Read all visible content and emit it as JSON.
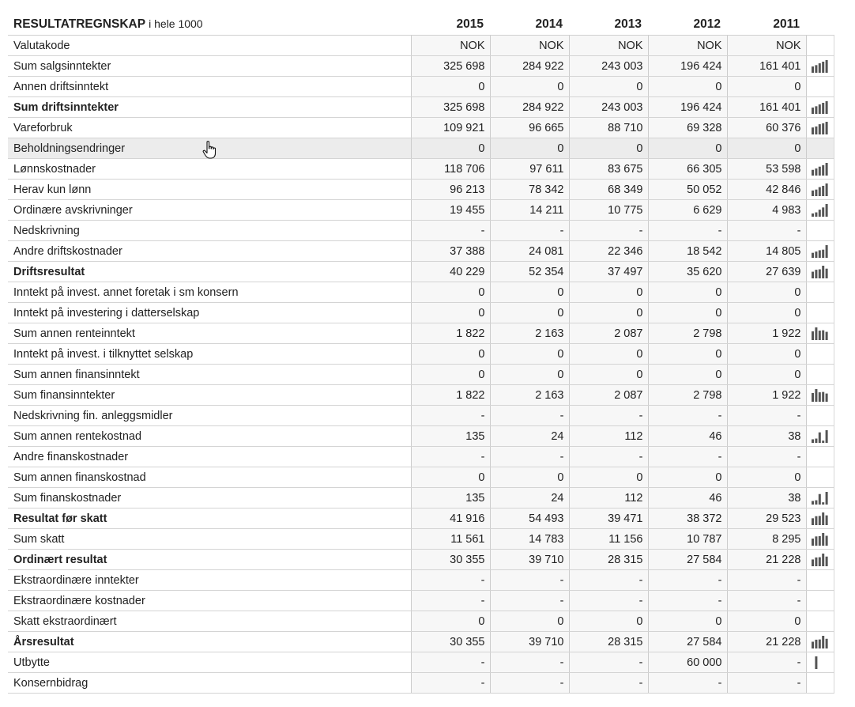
{
  "header": {
    "title": "RESULTATREGNSKAP",
    "scale": "i hele 1000",
    "years": [
      "2015",
      "2014",
      "2013",
      "2012",
      "2011"
    ]
  },
  "rows": [
    {
      "label": "Valutakode",
      "values": [
        "NOK",
        "NOK",
        "NOK",
        "NOK",
        "NOK"
      ],
      "bold": false,
      "spark": false
    },
    {
      "label": "Sum salgsinntekter",
      "values": [
        "325 698",
        "284 922",
        "243 003",
        "196 424",
        "161 401"
      ],
      "bold": false,
      "spark": true
    },
    {
      "label": "Annen driftsinntekt",
      "values": [
        "0",
        "0",
        "0",
        "0",
        "0"
      ],
      "bold": false,
      "spark": false
    },
    {
      "label": "Sum driftsinntekter",
      "values": [
        "325 698",
        "284 922",
        "243 003",
        "196 424",
        "161 401"
      ],
      "bold": true,
      "spark": true
    },
    {
      "label": "Vareforbruk",
      "values": [
        "109 921",
        "96 665",
        "88 710",
        "69 328",
        "60 376"
      ],
      "bold": false,
      "spark": true
    },
    {
      "label": "Beholdningsendringer",
      "values": [
        "0",
        "0",
        "0",
        "0",
        "0"
      ],
      "bold": false,
      "spark": false,
      "hover": true
    },
    {
      "label": "Lønnskostnader",
      "values": [
        "118 706",
        "97 611",
        "83 675",
        "66 305",
        "53 598"
      ],
      "bold": false,
      "spark": true
    },
    {
      "label": "Herav kun lønn",
      "values": [
        "96 213",
        "78 342",
        "68 349",
        "50 052",
        "42 846"
      ],
      "bold": false,
      "spark": true
    },
    {
      "label": "Ordinære avskrivninger",
      "values": [
        "19 455",
        "14 211",
        "10 775",
        "6 629",
        "4 983"
      ],
      "bold": false,
      "spark": true
    },
    {
      "label": "Nedskrivning",
      "values": [
        "-",
        "-",
        "-",
        "-",
        "-"
      ],
      "bold": false,
      "spark": false
    },
    {
      "label": "Andre driftskostnader",
      "values": [
        "37 388",
        "24 081",
        "22 346",
        "18 542",
        "14 805"
      ],
      "bold": false,
      "spark": true
    },
    {
      "label": "Driftsresultat",
      "values": [
        "40 229",
        "52 354",
        "37 497",
        "35 620",
        "27 639"
      ],
      "bold": true,
      "spark": true
    },
    {
      "label": "Inntekt på invest. annet foretak i sm konsern",
      "values": [
        "0",
        "0",
        "0",
        "0",
        "0"
      ],
      "bold": false,
      "spark": false
    },
    {
      "label": "Inntekt på investering i datterselskap",
      "values": [
        "0",
        "0",
        "0",
        "0",
        "0"
      ],
      "bold": false,
      "spark": false
    },
    {
      "label": "Sum annen renteinntekt",
      "values": [
        "1 822",
        "2 163",
        "2 087",
        "2 798",
        "1 922"
      ],
      "bold": false,
      "spark": true
    },
    {
      "label": "Inntekt på invest. i tilknyttet selskap",
      "values": [
        "0",
        "0",
        "0",
        "0",
        "0"
      ],
      "bold": false,
      "spark": false
    },
    {
      "label": "Sum annen finansinntekt",
      "values": [
        "0",
        "0",
        "0",
        "0",
        "0"
      ],
      "bold": false,
      "spark": false
    },
    {
      "label": "Sum finansinntekter",
      "values": [
        "1 822",
        "2 163",
        "2 087",
        "2 798",
        "1 922"
      ],
      "bold": false,
      "spark": true
    },
    {
      "label": "Nedskrivning fin. anleggsmidler",
      "values": [
        "-",
        "-",
        "-",
        "-",
        "-"
      ],
      "bold": false,
      "spark": false
    },
    {
      "label": "Sum annen rentekostnad",
      "values": [
        "135",
        "24",
        "112",
        "46",
        "38"
      ],
      "bold": false,
      "spark": true
    },
    {
      "label": "Andre finanskostnader",
      "values": [
        "-",
        "-",
        "-",
        "-",
        "-"
      ],
      "bold": false,
      "spark": false
    },
    {
      "label": "Sum annen finanskostnad",
      "values": [
        "0",
        "0",
        "0",
        "0",
        "0"
      ],
      "bold": false,
      "spark": false
    },
    {
      "label": "Sum finanskostnader",
      "values": [
        "135",
        "24",
        "112",
        "46",
        "38"
      ],
      "bold": false,
      "spark": true
    },
    {
      "label": "Resultat før skatt",
      "values": [
        "41 916",
        "54 493",
        "39 471",
        "38 372",
        "29 523"
      ],
      "bold": true,
      "spark": true
    },
    {
      "label": "Sum skatt",
      "values": [
        "11 561",
        "14 783",
        "11 156",
        "10 787",
        "8 295"
      ],
      "bold": false,
      "spark": true
    },
    {
      "label": "Ordinært resultat",
      "values": [
        "30 355",
        "39 710",
        "28 315",
        "27 584",
        "21 228"
      ],
      "bold": true,
      "spark": true
    },
    {
      "label": "Ekstraordinære inntekter",
      "values": [
        "-",
        "-",
        "-",
        "-",
        "-"
      ],
      "bold": false,
      "spark": false
    },
    {
      "label": "Ekstraordinære kostnader",
      "values": [
        "-",
        "-",
        "-",
        "-",
        "-"
      ],
      "bold": false,
      "spark": false
    },
    {
      "label": "Skatt ekstraordinært",
      "values": [
        "0",
        "0",
        "0",
        "0",
        "0"
      ],
      "bold": false,
      "spark": false
    },
    {
      "label": "Årsresultat",
      "values": [
        "30 355",
        "39 710",
        "28 315",
        "27 584",
        "21 228"
      ],
      "bold": true,
      "spark": true
    },
    {
      "label": "Utbytte",
      "values": [
        "-",
        "-",
        "-",
        "60 000",
        "-"
      ],
      "bold": false,
      "spark": true
    },
    {
      "label": "Konsernbidrag",
      "values": [
        "-",
        "-",
        "-",
        "-",
        "-"
      ],
      "bold": false,
      "spark": false
    }
  ],
  "colors": {
    "spark_bar": "#555555",
    "value_cell_bg": "#f7f7f7",
    "hover_row_bg": "#ececec"
  },
  "icons": {
    "sparkline": "bar-sparkline-icon",
    "cursor": "hand-pointer-icon"
  }
}
